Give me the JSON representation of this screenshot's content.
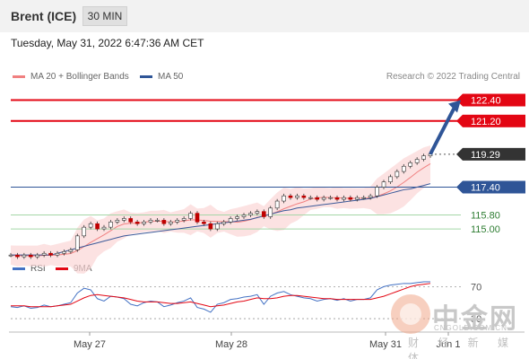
{
  "header": {
    "title": "Brent (ICE)",
    "timeframe": "30 MIN"
  },
  "timestamp": "Tuesday, May 31, 2022 6:47:36 AM CET",
  "legend": {
    "bb_label": "MA 20 + Bollinger Bands",
    "ma50_label": "MA 50",
    "credit": "Research © 2022 Trading Central"
  },
  "rsi_legend": {
    "rsi_label": "RSI",
    "ma_label": "9MA"
  },
  "watermark": {
    "brand": "中金网",
    "url": "CNGOLD.COM.CN",
    "tagline": "财 经 新 媒 体"
  },
  "colors": {
    "resistance": "#e30613",
    "support_blue": "#2f5597",
    "support_green": "#2e7d32",
    "current": "#333333",
    "bb_band": "#fbd5d5",
    "ma20": "#f08080",
    "ma50": "#3c5a99",
    "rsi": "#4472c4",
    "rsi_ma": "#e30613"
  },
  "chart_data": {
    "type": "line",
    "title": "",
    "xlabel": "",
    "ylabel": "",
    "x_ticks": [
      "May 27",
      "May 28",
      "May 31",
      "Jun 1"
    ],
    "ylim": [
      113.2,
      123.2
    ],
    "levels": [
      {
        "label": "122.40",
        "value": 122.4,
        "kind": "resistance"
      },
      {
        "label": "121.20",
        "value": 121.2,
        "kind": "resistance"
      },
      {
        "label": "119.29",
        "value": 119.29,
        "kind": "current"
      },
      {
        "label": "117.40",
        "value": 117.4,
        "kind": "support_blue"
      },
      {
        "label": "115.80",
        "value": 115.8,
        "kind": "support_green"
      },
      {
        "label": "115.00",
        "value": 115.0,
        "kind": "support_green"
      }
    ],
    "price_series": [
      113.5,
      113.4,
      113.5,
      113.4,
      113.5,
      113.6,
      113.5,
      113.6,
      113.7,
      113.8,
      114.6,
      115.1,
      115.3,
      115.0,
      115.1,
      115.4,
      115.5,
      115.6,
      115.4,
      115.3,
      115.4,
      115.5,
      115.5,
      115.3,
      115.4,
      115.5,
      115.6,
      115.9,
      115.4,
      115.3,
      115.0,
      115.3,
      115.4,
      115.6,
      115.7,
      115.8,
      115.9,
      116.0,
      115.7,
      116.2,
      116.6,
      116.9,
      116.8,
      116.9,
      116.8,
      116.8,
      116.7,
      116.8,
      116.8,
      116.7,
      116.8,
      116.7,
      116.8,
      116.8,
      116.9,
      117.4,
      117.7,
      118.0,
      118.3,
      118.6,
      118.8,
      119.0,
      119.2,
      119.3
    ],
    "ma50_series": [
      113.5,
      113.5,
      113.5,
      113.5,
      113.5,
      113.5,
      113.5,
      113.6,
      113.7,
      113.8,
      113.9,
      114.0,
      114.1,
      114.2,
      114.3,
      114.4,
      114.5,
      114.6,
      114.65,
      114.7,
      114.75,
      114.8,
      114.85,
      114.9,
      114.95,
      115.0,
      115.05,
      115.1,
      115.15,
      115.2,
      115.25,
      115.3,
      115.35,
      115.4,
      115.45,
      115.5,
      115.55,
      115.65,
      115.75,
      115.85,
      115.95,
      116.05,
      116.1,
      116.2,
      116.25,
      116.3,
      116.35,
      116.4,
      116.45,
      116.5,
      116.55,
      116.6,
      116.65,
      116.7,
      116.75,
      116.85,
      116.95,
      117.05,
      117.15,
      117.25,
      117.3,
      117.4,
      117.5,
      117.6
    ],
    "rsi": {
      "levels": [
        30,
        70
      ],
      "series": [
        45,
        44,
        46,
        43,
        44,
        47,
        45,
        46,
        48,
        50,
        62,
        68,
        66,
        55,
        52,
        58,
        57,
        55,
        48,
        46,
        50,
        52,
        51,
        45,
        47,
        50,
        52,
        56,
        44,
        42,
        38,
        48,
        50,
        54,
        55,
        57,
        58,
        60,
        48,
        58,
        62,
        64,
        60,
        58,
        56,
        55,
        52,
        54,
        55,
        53,
        55,
        52,
        54,
        54,
        56,
        66,
        70,
        72,
        73,
        74,
        74,
        75,
        76,
        76
      ],
      "ma_series": [
        46,
        46,
        46,
        45,
        45,
        45,
        45,
        46,
        47,
        48,
        52,
        56,
        59,
        60,
        59,
        58,
        57,
        56,
        54,
        52,
        51,
        51,
        51,
        50,
        49,
        49,
        50,
        51,
        49,
        47,
        45,
        46,
        47,
        49,
        51,
        52,
        54,
        56,
        55,
        55,
        56,
        58,
        59,
        59,
        58,
        57,
        56,
        55,
        55,
        54,
        54,
        54,
        54,
        54,
        54,
        56,
        58,
        61,
        64,
        67,
        70,
        72,
        73,
        74
      ]
    }
  }
}
